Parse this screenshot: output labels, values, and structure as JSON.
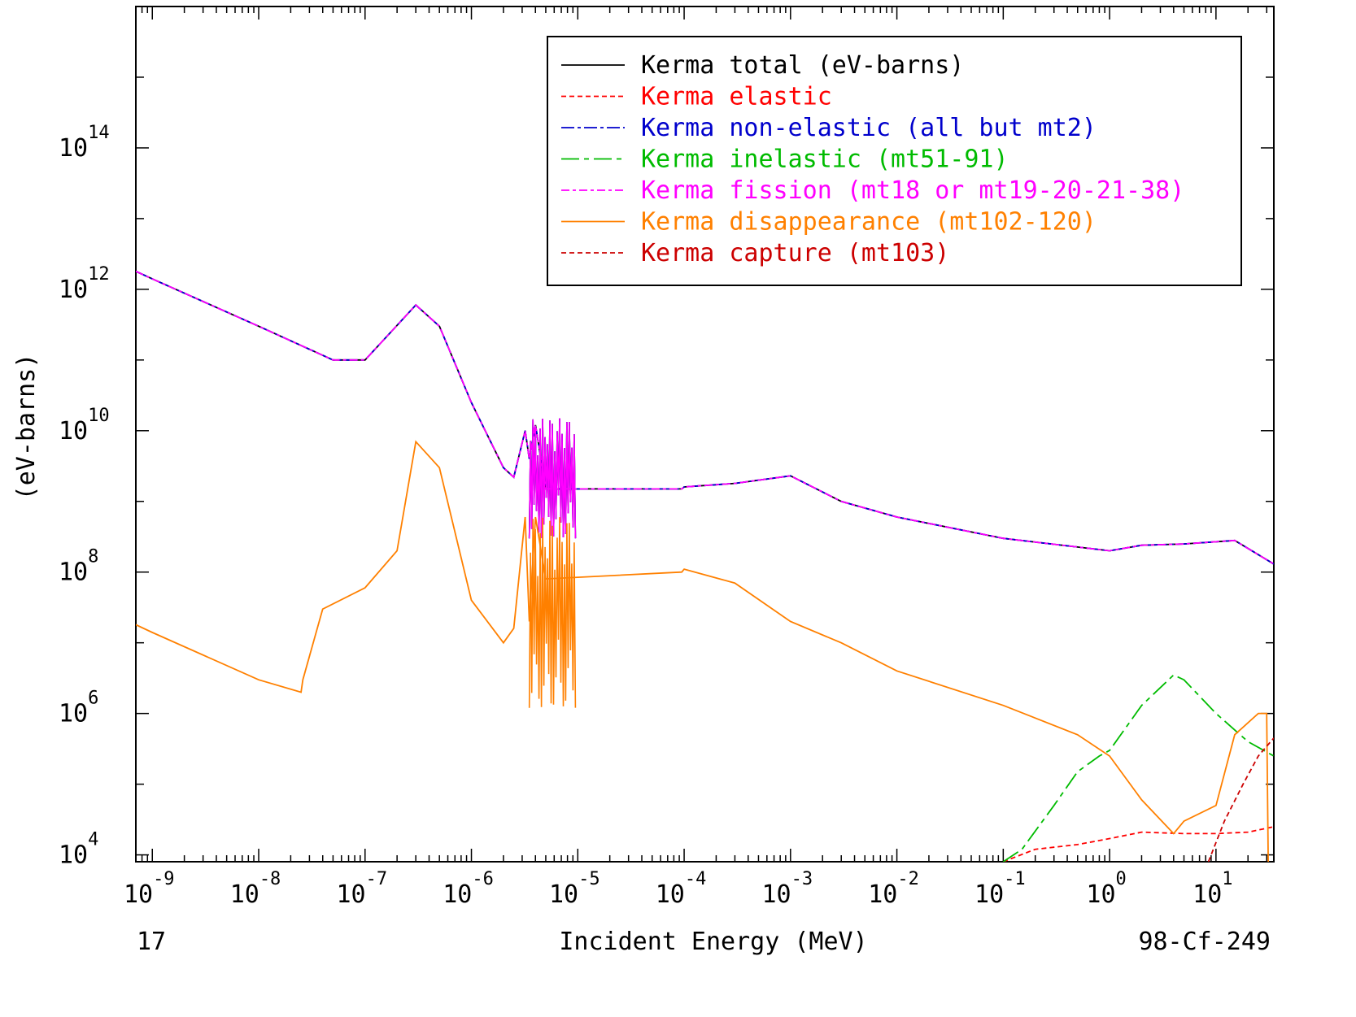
{
  "colors": {
    "total": "#000000",
    "elastic": "#ff0000",
    "nonelastic": "#0000cc",
    "inelastic": "#00bb00",
    "fission": "#ff00ff",
    "disappearance": "#ff8000",
    "capture": "#cc0000"
  },
  "footer": {
    "left": "17",
    "right": "98-Cf-249"
  },
  "chart_data": {
    "type": "line",
    "xlabel": "Incident Energy (MeV)",
    "ylabel": "(eV-barns)",
    "xscale": "log",
    "yscale": "log",
    "xlim": [
      7e-10,
      35
    ],
    "ylim": [
      8000,
      1e+16
    ],
    "grid": false,
    "legend_position": "top-right",
    "x_ticks": [
      {
        "base": "10",
        "exp": "-9",
        "value": 1e-09
      },
      {
        "base": "10",
        "exp": "-8",
        "value": 1e-08
      },
      {
        "base": "10",
        "exp": "-7",
        "value": 1e-07
      },
      {
        "base": "10",
        "exp": "-6",
        "value": 1e-06
      },
      {
        "base": "10",
        "exp": "-5",
        "value": 1e-05
      },
      {
        "base": "10",
        "exp": "-4",
        "value": 0.0001
      },
      {
        "base": "10",
        "exp": "-3",
        "value": 0.001
      },
      {
        "base": "10",
        "exp": "-2",
        "value": 0.01
      },
      {
        "base": "10",
        "exp": "-1",
        "value": 0.1
      },
      {
        "base": "10",
        "exp": "0",
        "value": 1
      },
      {
        "base": "10",
        "exp": "1",
        "value": 10
      }
    ],
    "y_ticks": [
      {
        "base": "10",
        "exp": "4",
        "value": 10000.0
      },
      {
        "base": "10",
        "exp": "6",
        "value": 1000000.0
      },
      {
        "base": "10",
        "exp": "8",
        "value": 100000000.0
      },
      {
        "base": "10",
        "exp": "10",
        "value": 10000000000.0
      },
      {
        "base": "10",
        "exp": "12",
        "value": 1000000000000.0
      },
      {
        "base": "10",
        "exp": "14",
        "value": 100000000000000.0
      }
    ],
    "series": [
      {
        "key": "total",
        "name": "Kerma total  (eV-barns)",
        "dash": "",
        "resonance_band": {
          "x0": 3.5e-06,
          "x1": 9.5e-06,
          "lo": 300000000.0,
          "hi": 15000000000.0
        },
        "points": [
          [
            7e-10,
            1800000000000.0
          ],
          [
            1e-09,
            1400000000000.0
          ],
          [
            1e-08,
            300000000000.0
          ],
          [
            5e-08,
            100000000000.0
          ],
          [
            1e-07,
            100000000000.0
          ],
          [
            3e-07,
            600000000000.0
          ],
          [
            5e-07,
            300000000000.0
          ],
          [
            1e-06,
            25000000000.0
          ],
          [
            2e-06,
            3000000000.0
          ],
          [
            2.5e-06,
            2200000000.0
          ],
          [
            3.2e-06,
            10000000000.0
          ],
          [
            3.5e-06,
            4000000000.0
          ],
          [
            4e-06,
            12000000000.0
          ],
          [
            5e-06,
            1500000000.0
          ],
          [
            9.5e-05,
            1500000000.0
          ],
          [
            0.0001,
            1600000000.0
          ],
          [
            0.0003,
            1800000000.0
          ],
          [
            0.001,
            2300000000.0
          ],
          [
            0.003,
            1000000000.0
          ],
          [
            0.01,
            600000000.0
          ],
          [
            0.1,
            300000000.0
          ],
          [
            1,
            200000000.0
          ],
          [
            2,
            240000000.0
          ],
          [
            5,
            250000000.0
          ],
          [
            15,
            280000000.0
          ],
          [
            35,
            130000000.0
          ]
        ]
      },
      {
        "key": "elastic",
        "name": "Kerma elastic",
        "dash": "6,4",
        "resonance_band": null,
        "points": [
          [
            0.1,
            8000
          ],
          [
            0.2,
            12000
          ],
          [
            0.5,
            14000
          ],
          [
            1,
            17000
          ],
          [
            2,
            21000
          ],
          [
            5,
            20000
          ],
          [
            10,
            20000
          ],
          [
            20,
            21000
          ],
          [
            35,
            25000
          ]
        ]
      },
      {
        "key": "nonelastic",
        "name": "Kerma non-elastic (all but mt2)",
        "dash": "16,4,4,4",
        "resonance_band": {
          "x0": 3.5e-06,
          "x1": 9.5e-06,
          "lo": 300000000.0,
          "hi": 15000000000.0
        },
        "points": [
          [
            7e-10,
            1800000000000.0
          ],
          [
            1e-09,
            1400000000000.0
          ],
          [
            1e-08,
            300000000000.0
          ],
          [
            5e-08,
            100000000000.0
          ],
          [
            1e-07,
            100000000000.0
          ],
          [
            3e-07,
            600000000000.0
          ],
          [
            5e-07,
            300000000000.0
          ],
          [
            1e-06,
            25000000000.0
          ],
          [
            2e-06,
            3000000000.0
          ],
          [
            2.5e-06,
            2200000000.0
          ],
          [
            3.2e-06,
            10000000000.0
          ],
          [
            3.5e-06,
            4000000000.0
          ],
          [
            4e-06,
            12000000000.0
          ],
          [
            5e-06,
            1500000000.0
          ],
          [
            9.5e-05,
            1500000000.0
          ],
          [
            0.0001,
            1600000000.0
          ],
          [
            0.0003,
            1800000000.0
          ],
          [
            0.001,
            2300000000.0
          ],
          [
            0.003,
            1000000000.0
          ],
          [
            0.01,
            600000000.0
          ],
          [
            0.1,
            300000000.0
          ],
          [
            1,
            200000000.0
          ],
          [
            2,
            240000000.0
          ],
          [
            5,
            250000000.0
          ],
          [
            15,
            280000000.0
          ],
          [
            35,
            130000000.0
          ]
        ]
      },
      {
        "key": "inelastic",
        "name": "Kerma inelastic (mt51-91)",
        "dash": "22,6,6,6",
        "resonance_band": null,
        "points": [
          [
            0.1,
            8000
          ],
          [
            0.15,
            12000
          ],
          [
            0.3,
            50000
          ],
          [
            0.5,
            150000
          ],
          [
            0.8,
            250000
          ],
          [
            1,
            300000
          ],
          [
            2,
            1300000
          ],
          [
            4,
            3500000
          ],
          [
            5,
            3000000
          ],
          [
            10,
            1000000
          ],
          [
            20,
            400000
          ],
          [
            35,
            250000
          ]
        ]
      },
      {
        "key": "fission",
        "name": "Kerma fission (mt18 or mt19-20-21-38)",
        "dash": "10,4,4,4",
        "resonance_band": {
          "x0": 3.5e-06,
          "x1": 9.5e-06,
          "lo": 300000000.0,
          "hi": 15000000000.0
        },
        "points": [
          [
            7e-10,
            1800000000000.0
          ],
          [
            1e-09,
            1400000000000.0
          ],
          [
            1e-08,
            300000000000.0
          ],
          [
            5e-08,
            100000000000.0
          ],
          [
            1e-07,
            100000000000.0
          ],
          [
            3e-07,
            600000000000.0
          ],
          [
            5e-07,
            300000000000.0
          ],
          [
            1e-06,
            25000000000.0
          ],
          [
            2e-06,
            3000000000.0
          ],
          [
            2.5e-06,
            2200000000.0
          ],
          [
            3.2e-06,
            10000000000.0
          ],
          [
            3.5e-06,
            4000000000.0
          ],
          [
            4e-06,
            12000000000.0
          ],
          [
            5e-06,
            1500000000.0
          ],
          [
            9.5e-05,
            1500000000.0
          ],
          [
            0.0001,
            1600000000.0
          ],
          [
            0.0003,
            1800000000.0
          ],
          [
            0.001,
            2300000000.0
          ],
          [
            0.003,
            1000000000.0
          ],
          [
            0.01,
            600000000.0
          ],
          [
            0.1,
            300000000.0
          ],
          [
            1,
            200000000.0
          ],
          [
            2,
            240000000.0
          ],
          [
            5,
            250000000.0
          ],
          [
            15,
            280000000.0
          ],
          [
            35,
            130000000.0
          ]
        ]
      },
      {
        "key": "disappearance",
        "name": "Kerma disappearance (mt102-120)",
        "dash": "",
        "resonance_band": {
          "x0": 3.5e-06,
          "x1": 9.5e-06,
          "lo": 1200000.0,
          "hi": 600000000.0
        },
        "points": [
          [
            7e-10,
            18000000.0
          ],
          [
            1e-09,
            14000000.0
          ],
          [
            1e-08,
            3000000.0
          ],
          [
            2.5e-08,
            2000000.0
          ],
          [
            2.6e-08,
            3000000.0
          ],
          [
            4e-08,
            30000000.0
          ],
          [
            1e-07,
            60000000.0
          ],
          [
            2e-07,
            200000000.0
          ],
          [
            3e-07,
            7000000000.0
          ],
          [
            5e-07,
            3000000000.0
          ],
          [
            1e-06,
            40000000.0
          ],
          [
            2e-06,
            10000000.0
          ],
          [
            2.5e-06,
            16000000.0
          ],
          [
            3.2e-06,
            600000000.0
          ],
          [
            3.5e-06,
            20000000.0
          ],
          [
            4e-06,
            600000000.0
          ],
          [
            5e-06,
            80000000.0
          ],
          [
            9.5e-05,
            100000000.0
          ],
          [
            0.0001,
            110000000.0
          ],
          [
            0.0003,
            70000000.0
          ],
          [
            0.001,
            20000000.0
          ],
          [
            0.003,
            10000000.0
          ],
          [
            0.01,
            4000000.0
          ],
          [
            0.1,
            1300000.0
          ],
          [
            0.5,
            500000
          ],
          [
            1,
            250000
          ],
          [
            2,
            60000
          ],
          [
            4,
            20000
          ],
          [
            5,
            30000
          ],
          [
            10,
            50000
          ],
          [
            15,
            500000
          ],
          [
            25,
            1000000
          ],
          [
            30,
            1000000
          ],
          [
            31,
            8000
          ]
        ]
      },
      {
        "key": "capture",
        "name": "Kerma capture (mt103)",
        "dash": "6,4",
        "resonance_band": null,
        "points": [
          [
            8.5,
            8000
          ],
          [
            12,
            30000
          ],
          [
            18,
            100000
          ],
          [
            25,
            250000
          ],
          [
            35,
            450000
          ]
        ]
      }
    ]
  }
}
